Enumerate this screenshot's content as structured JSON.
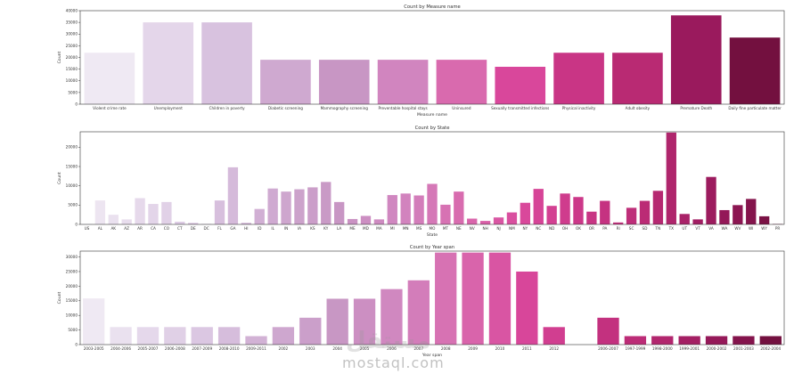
{
  "chart_data": [
    {
      "type": "bar",
      "title": "Count by Measure name",
      "xlabel": "Measure name",
      "ylabel": "Count",
      "ylim": [
        0,
        40000
      ],
      "yticks": [
        0,
        5000,
        10000,
        15000,
        20000,
        25000,
        30000,
        35000,
        40000
      ],
      "categories": [
        "Violent crime rate",
        "Unemployment",
        "Children in poverty",
        "Diabetic screening",
        "Mammography screening",
        "Preventable hospital stays",
        "Uninsured",
        "Sexually transmitted infections",
        "Physical inactivity",
        "Adult obesity",
        "Premature Death",
        "Daily fine particulate matter"
      ],
      "values": [
        22000,
        35000,
        35000,
        19000,
        19000,
        19000,
        19000,
        16000,
        22000,
        22000,
        38000,
        28500
      ]
    },
    {
      "type": "bar",
      "title": "Count by State",
      "xlabel": "State",
      "ylabel": "Count",
      "ylim": [
        0,
        24000
      ],
      "yticks": [
        0,
        5000,
        10000,
        15000,
        20000
      ],
      "categories": [
        "US",
        "AL",
        "AK",
        "AZ",
        "AR",
        "CA",
        "CO",
        "CT",
        "DE",
        "DC",
        "FL",
        "GA",
        "HI",
        "ID",
        "IL",
        "IN",
        "IA",
        "KS",
        "KY",
        "LA",
        "ME",
        "MD",
        "MA",
        "MI",
        "MN",
        "MS",
        "MO",
        "MT",
        "NE",
        "NV",
        "NH",
        "NJ",
        "NM",
        "NY",
        "NC",
        "ND",
        "OH",
        "OK",
        "OR",
        "PA",
        "RI",
        "SC",
        "SD",
        "TN",
        "TX",
        "UT",
        "VT",
        "VA",
        "WA",
        "WV",
        "WI",
        "WY",
        "PR"
      ],
      "values": [
        100,
        6200,
        2500,
        1300,
        6800,
        5300,
        5800,
        700,
        400,
        100,
        6200,
        14800,
        400,
        4000,
        9300,
        8500,
        9100,
        9600,
        11000,
        5800,
        1400,
        2200,
        1300,
        7600,
        8000,
        7500,
        10500,
        5100,
        8500,
        1500,
        900,
        1800,
        3100,
        5600,
        9200,
        4800,
        8000,
        7100,
        3300,
        6100,
        500,
        4300,
        6100,
        8700,
        23800,
        2700,
        1300,
        12300,
        3700,
        5000,
        6600,
        2100,
        100
      ]
    },
    {
      "type": "bar",
      "title": "Count by Year span",
      "xlabel": "Year span",
      "ylabel": "Count",
      "ylim": [
        0,
        32000
      ],
      "yticks": [
        0,
        5000,
        10000,
        15000,
        20000,
        25000,
        30000
      ],
      "categories": [
        "2003-2005",
        "2004-2006",
        "2005-2007",
        "2006-2008",
        "2007-2009",
        "2008-2010",
        "2009-2011",
        "2002",
        "2003",
        "2004",
        "2005",
        "2006",
        "2007",
        "2008",
        "2009",
        "2010",
        "2011",
        "2012",
        "",
        "2006-2007",
        "1997-1999",
        "1998-2000",
        "1999-2001",
        "2000-2002",
        "2001-2003",
        "2002-2004"
      ],
      "values": [
        15800,
        6000,
        6000,
        6000,
        6000,
        6000,
        2900,
        6000,
        9200,
        15700,
        15700,
        19000,
        22000,
        31500,
        31500,
        31500,
        25000,
        6000,
        0,
        9200,
        2900,
        2900,
        2900,
        2900,
        2900,
        2900
      ]
    }
  ],
  "watermark": {
    "logo_text": "مستقل",
    "site": "mostaql.com"
  }
}
